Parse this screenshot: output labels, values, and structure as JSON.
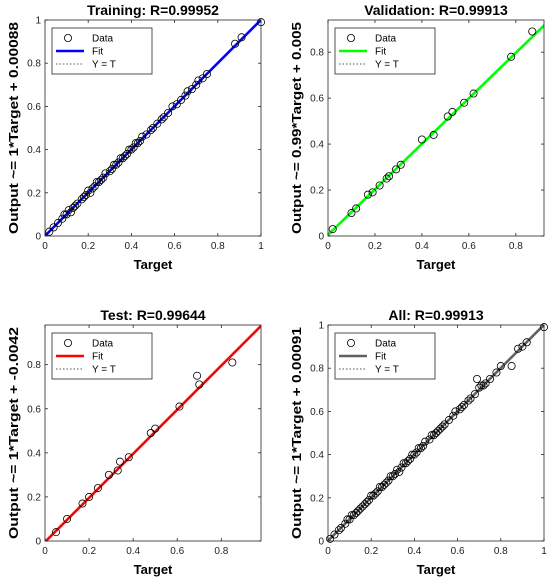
{
  "chart_data": [
    {
      "type": "scatter",
      "title": "Training: R=0.99952",
      "xlabel": "Target",
      "ylabel": "Output ~= 1*Target + 0.00088",
      "xlim": [
        0,
        1
      ],
      "ylim": [
        0,
        1
      ],
      "xticks": [
        "0",
        "0.2",
        "0.4",
        "0.6",
        "0.8",
        "1"
      ],
      "yticks": [
        "0",
        "0.2",
        "0.4",
        "0.6",
        "0.8",
        "1"
      ],
      "fit": {
        "slope": 1.0,
        "intercept": 0.00088,
        "color": "#0000ff"
      },
      "legend": {
        "position": "top-left",
        "entries": [
          "Data",
          "Fit",
          "Y = T"
        ]
      },
      "points": {
        "x": [
          0.02,
          0.04,
          0.06,
          0.08,
          0.09,
          0.1,
          0.11,
          0.12,
          0.13,
          0.14,
          0.15,
          0.17,
          0.18,
          0.19,
          0.2,
          0.21,
          0.22,
          0.23,
          0.24,
          0.25,
          0.26,
          0.27,
          0.28,
          0.3,
          0.31,
          0.32,
          0.33,
          0.34,
          0.35,
          0.36,
          0.37,
          0.38,
          0.39,
          0.4,
          0.41,
          0.42,
          0.43,
          0.44,
          0.45,
          0.47,
          0.49,
          0.5,
          0.52,
          0.54,
          0.55,
          0.57,
          0.59,
          0.61,
          0.63,
          0.65,
          0.66,
          0.68,
          0.7,
          0.71,
          0.73,
          0.75,
          0.88,
          0.91,
          1.0
        ],
        "y": [
          0.02,
          0.04,
          0.06,
          0.08,
          0.1,
          0.1,
          0.12,
          0.11,
          0.13,
          0.14,
          0.15,
          0.17,
          0.18,
          0.19,
          0.21,
          0.2,
          0.22,
          0.23,
          0.25,
          0.25,
          0.26,
          0.27,
          0.29,
          0.3,
          0.31,
          0.33,
          0.33,
          0.34,
          0.36,
          0.36,
          0.37,
          0.38,
          0.4,
          0.4,
          0.41,
          0.43,
          0.43,
          0.44,
          0.46,
          0.47,
          0.49,
          0.5,
          0.52,
          0.54,
          0.55,
          0.57,
          0.6,
          0.61,
          0.63,
          0.65,
          0.67,
          0.68,
          0.7,
          0.72,
          0.73,
          0.75,
          0.89,
          0.92,
          0.99
        ]
      }
    },
    {
      "type": "scatter",
      "title": "Validation: R=0.99913",
      "xlabel": "Target",
      "ylabel": "Output ~= 0.99*Target + 0.005",
      "xlim": [
        0,
        0.92
      ],
      "ylim": [
        0,
        0.94
      ],
      "xticks": [
        "0",
        "0.2",
        "0.4",
        "0.6",
        "0.8"
      ],
      "yticks": [
        "0",
        "0.2",
        "0.4",
        "0.6",
        "0.8"
      ],
      "fit": {
        "slope": 0.99,
        "intercept": 0.005,
        "color": "#00ff00"
      },
      "legend": {
        "position": "top-left",
        "entries": [
          "Data",
          "Fit",
          "Y = T"
        ]
      },
      "points": {
        "x": [
          0.02,
          0.1,
          0.12,
          0.17,
          0.19,
          0.22,
          0.25,
          0.26,
          0.29,
          0.31,
          0.4,
          0.45,
          0.51,
          0.53,
          0.58,
          0.62,
          0.78,
          0.87
        ],
        "y": [
          0.03,
          0.1,
          0.12,
          0.18,
          0.19,
          0.22,
          0.25,
          0.26,
          0.29,
          0.31,
          0.42,
          0.44,
          0.52,
          0.54,
          0.58,
          0.62,
          0.78,
          0.89
        ]
      }
    },
    {
      "type": "scatter",
      "title": "Test: R=0.99644",
      "xlabel": "Target",
      "ylabel": "Output ~= 1*Target + -0.0042",
      "xlim": [
        0,
        0.98
      ],
      "ylim": [
        0,
        0.98
      ],
      "xticks": [
        "0",
        "0.2",
        "0.4",
        "0.6",
        "0.8"
      ],
      "yticks": [
        "0",
        "0.2",
        "0.4",
        "0.6",
        "0.8"
      ],
      "fit": {
        "slope": 1.0,
        "intercept": -0.0042,
        "color": "#ff0000"
      },
      "legend": {
        "position": "top-left",
        "entries": [
          "Data",
          "Fit",
          "Y = T"
        ]
      },
      "points": {
        "x": [
          0.05,
          0.1,
          0.17,
          0.2,
          0.24,
          0.29,
          0.33,
          0.34,
          0.38,
          0.48,
          0.5,
          0.61,
          0.69,
          0.7,
          0.85
        ],
        "y": [
          0.04,
          0.1,
          0.17,
          0.2,
          0.24,
          0.3,
          0.32,
          0.36,
          0.38,
          0.49,
          0.51,
          0.61,
          0.75,
          0.71,
          0.81
        ]
      }
    },
    {
      "type": "scatter",
      "title": "All: R=0.99913",
      "xlabel": "Target",
      "ylabel": "Output ~= 1*Target + 0.00091",
      "xlim": [
        0,
        1
      ],
      "ylim": [
        0,
        1
      ],
      "xticks": [
        "0",
        "0.2",
        "0.4",
        "0.6",
        "0.8",
        "1"
      ],
      "yticks": [
        "0",
        "0.2",
        "0.4",
        "0.6",
        "0.8",
        "1"
      ],
      "fit": {
        "slope": 1.0,
        "intercept": 0.00091,
        "color": "#606060"
      },
      "legend": {
        "position": "top-left",
        "entries": [
          "Data",
          "Fit",
          "Y = T"
        ]
      },
      "points": {
        "x": [
          0.01,
          0.03,
          0.05,
          0.06,
          0.08,
          0.09,
          0.1,
          0.11,
          0.12,
          0.13,
          0.14,
          0.15,
          0.16,
          0.17,
          0.18,
          0.19,
          0.2,
          0.21,
          0.22,
          0.23,
          0.24,
          0.25,
          0.26,
          0.27,
          0.28,
          0.29,
          0.3,
          0.31,
          0.32,
          0.33,
          0.34,
          0.35,
          0.36,
          0.37,
          0.38,
          0.39,
          0.4,
          0.41,
          0.42,
          0.43,
          0.44,
          0.45,
          0.47,
          0.48,
          0.49,
          0.5,
          0.51,
          0.52,
          0.53,
          0.54,
          0.56,
          0.58,
          0.59,
          0.61,
          0.62,
          0.63,
          0.65,
          0.66,
          0.68,
          0.69,
          0.7,
          0.71,
          0.72,
          0.73,
          0.75,
          0.78,
          0.8,
          0.85,
          0.88,
          0.9,
          0.92,
          1.0
        ],
        "y": [
          0.01,
          0.03,
          0.05,
          0.06,
          0.08,
          0.1,
          0.1,
          0.12,
          0.12,
          0.13,
          0.14,
          0.15,
          0.16,
          0.17,
          0.18,
          0.19,
          0.21,
          0.21,
          0.22,
          0.23,
          0.25,
          0.25,
          0.26,
          0.27,
          0.28,
          0.3,
          0.3,
          0.31,
          0.33,
          0.32,
          0.34,
          0.36,
          0.36,
          0.37,
          0.38,
          0.4,
          0.4,
          0.41,
          0.43,
          0.43,
          0.44,
          0.46,
          0.47,
          0.49,
          0.49,
          0.5,
          0.51,
          0.52,
          0.53,
          0.54,
          0.56,
          0.58,
          0.6,
          0.61,
          0.62,
          0.63,
          0.65,
          0.66,
          0.68,
          0.75,
          0.71,
          0.72,
          0.72,
          0.73,
          0.75,
          0.78,
          0.81,
          0.81,
          0.89,
          0.9,
          0.92,
          0.99
        ]
      }
    }
  ]
}
